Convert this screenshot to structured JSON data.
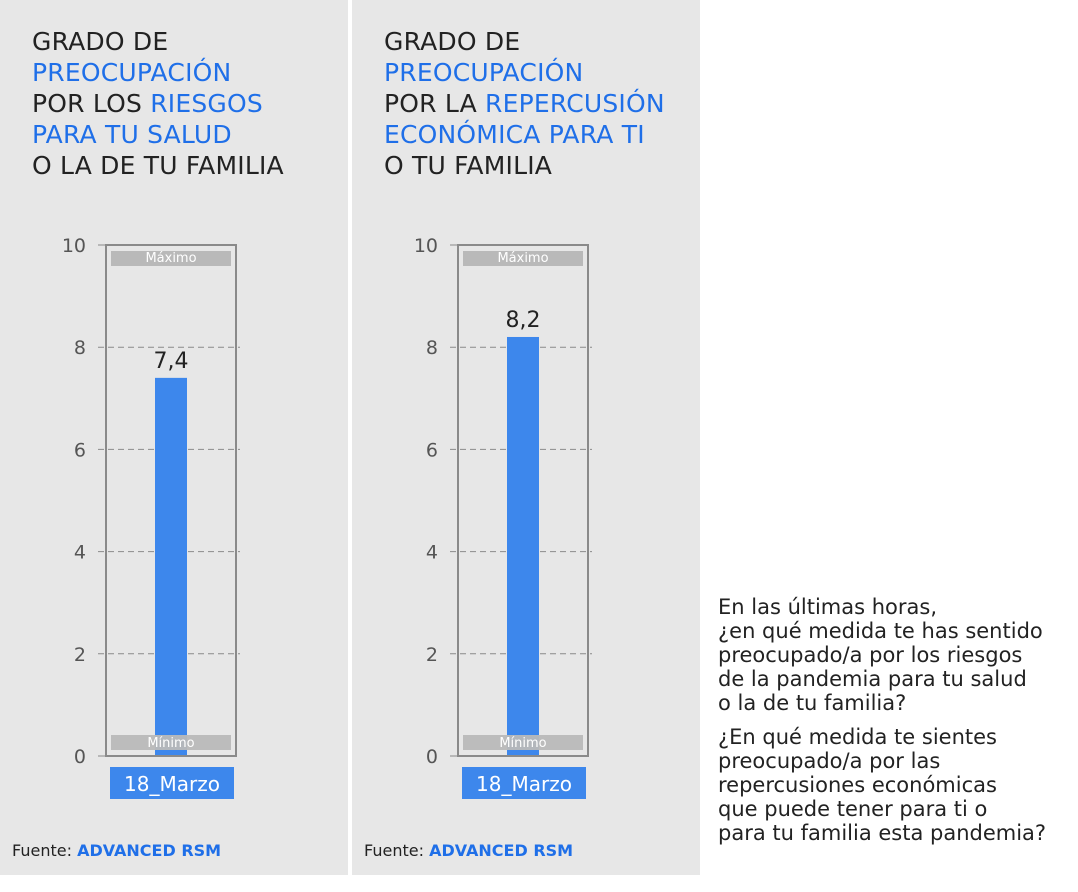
{
  "panels": [
    {
      "title_lines": [
        [
          {
            "t": "GRADO DE",
            "hl": false
          }
        ],
        [
          {
            "t": "PREOCUPACIÓN",
            "hl": true
          }
        ],
        [
          {
            "t": "POR LOS ",
            "hl": false
          },
          {
            "t": "RIESGOS",
            "hl": true
          }
        ],
        [
          {
            "t": "PARA TU SALUD",
            "hl": true
          }
        ],
        [
          {
            "t": "O LA DE TU FAMILIA",
            "hl": false
          }
        ]
      ],
      "footer": {
        "label": "Fuente:",
        "brand": "ADVANCED RSM"
      }
    },
    {
      "title_lines": [
        [
          {
            "t": "GRADO DE",
            "hl": false
          }
        ],
        [
          {
            "t": "PREOCUPACIÓN",
            "hl": true
          }
        ],
        [
          {
            "t": "POR LA ",
            "hl": false
          },
          {
            "t": "REPERCUSIÓN",
            "hl": true
          }
        ],
        [
          {
            "t": "ECONÓMICA PARA TI",
            "hl": true
          }
        ],
        [
          {
            "t": "O TU FAMILIA",
            "hl": false
          }
        ]
      ],
      "footer": {
        "label": "Fuente:",
        "brand": "ADVANCED RSM"
      }
    }
  ],
  "chart_data": [
    {
      "type": "bar",
      "categories": [
        "18_Marzo"
      ],
      "values": [
        7.4
      ],
      "data_labels": [
        "7,4"
      ],
      "ylim": [
        0,
        10
      ],
      "yticks": [
        0,
        2,
        4,
        6,
        8,
        10
      ],
      "grid": "dashed-horizontal",
      "bands": {
        "max_label": "Máximo",
        "min_label": "Mínimo"
      },
      "bar_color": "#3d87ec"
    },
    {
      "type": "bar",
      "categories": [
        "18_Marzo"
      ],
      "values": [
        8.2
      ],
      "data_labels": [
        "8,2"
      ],
      "ylim": [
        0,
        10
      ],
      "yticks": [
        0,
        2,
        4,
        6,
        8,
        10
      ],
      "grid": "dashed-horizontal",
      "bands": {
        "max_label": "Máximo",
        "min_label": "Mínimo"
      },
      "bar_color": "#3d87ec"
    }
  ],
  "questions": [
    [
      "En las últimas horas,",
      "¿en qué medida te has sentido",
      "preocupado/a por los riesgos",
      "de la pandemia para tu salud",
      "o la de tu familia?"
    ],
    [
      "¿En qué medida te sientes",
      "preocupado/a por las",
      "repercusiones económicas",
      "que puede tener para ti o",
      "para tu familia esta pandemia?"
    ]
  ],
  "colors": {
    "highlight": "#1f6fe8",
    "bar": "#3d87ec",
    "panel_bg": "#e7e7e7",
    "band": "#b9b9b9"
  }
}
